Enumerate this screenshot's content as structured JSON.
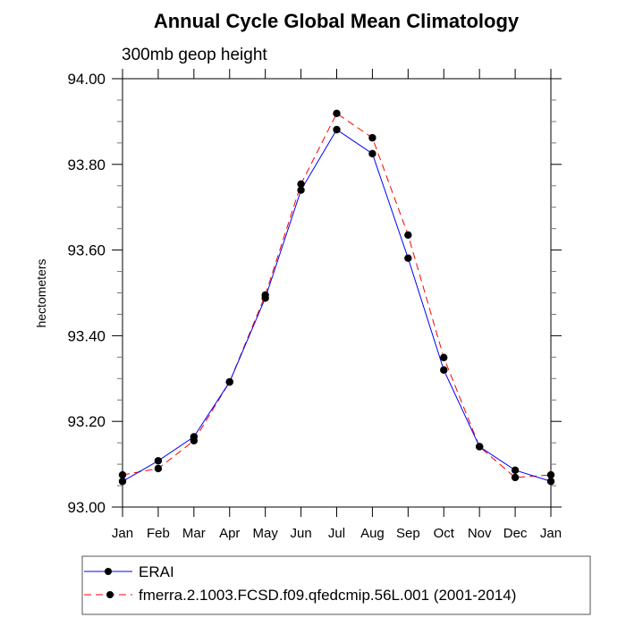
{
  "chart_data": {
    "type": "line",
    "title": "Annual Cycle Global Mean Climatology",
    "subtitle": "300mb geop height",
    "xlabel": "",
    "ylabel": "hectometers",
    "categories": [
      "Jan",
      "Feb",
      "Mar",
      "Apr",
      "May",
      "Jun",
      "Jul",
      "Aug",
      "Sep",
      "Oct",
      "Nov",
      "Dec",
      "Jan"
    ],
    "ylim": [
      93.0,
      94.0
    ],
    "y_major_ticks": [
      93.0,
      93.2,
      93.4,
      93.6,
      93.8,
      94.0
    ],
    "y_tick_labels": [
      "93.00",
      "93.20",
      "93.40",
      "93.60",
      "93.80",
      "94.00"
    ],
    "y_minor_step": 0.05,
    "grid": false,
    "legend_position": "bottom",
    "series": [
      {
        "name": "ERAI",
        "color": "#0000ff",
        "line_style": "solid",
        "marker": "filled-circle",
        "values": [
          93.06,
          93.108,
          93.164,
          93.292,
          93.488,
          93.74,
          93.881,
          93.825,
          93.581,
          93.32,
          93.141,
          93.086,
          93.06
        ]
      },
      {
        "name": "fmerra.2.1003.FCSD.f09.qfedcmip.56L.001 (2001-2014)",
        "color": "#ff0000",
        "line_style": "dashed",
        "marker": "filled-circle",
        "values": [
          93.075,
          93.09,
          93.155,
          93.292,
          93.495,
          93.754,
          93.919,
          93.862,
          93.635,
          93.349,
          93.141,
          93.069,
          93.075
        ]
      }
    ]
  }
}
